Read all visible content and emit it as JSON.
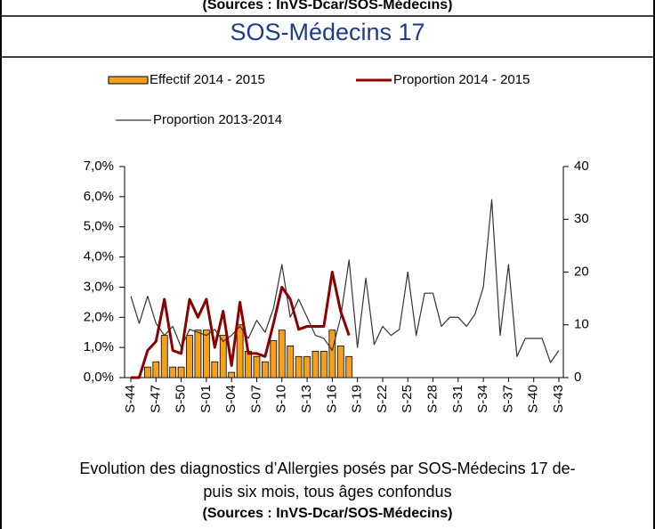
{
  "header": {
    "top_source": "(Sources : InVS-Dcar/SOS-Médecins)",
    "title": "SOS-Médecins 17"
  },
  "chart_data": {
    "type": "combo",
    "categories": [
      "S-44",
      null,
      null,
      "S-47",
      null,
      null,
      "S-50",
      null,
      null,
      "S-01",
      null,
      null,
      "S-04",
      null,
      null,
      "S-07",
      null,
      null,
      "S-10",
      null,
      null,
      "S-13",
      null,
      null,
      "S-16",
      null,
      null,
      "S-19",
      null,
      null,
      "S-22",
      null,
      null,
      "S-25",
      null,
      null,
      "S-28",
      null,
      null,
      "S-31",
      null,
      null,
      "S-34",
      null,
      null,
      "S-37",
      null,
      null,
      "S-40",
      null,
      null,
      "S-43"
    ],
    "series": [
      {
        "name": "Effectif 2014 - 2015",
        "kind": "bar",
        "axis": "y2",
        "color": "#f5a01a",
        "values": [
          0,
          0,
          2,
          3,
          8,
          2,
          2,
          8,
          9,
          9,
          3,
          8,
          1,
          10,
          5,
          4,
          3,
          7,
          9,
          6,
          4,
          4,
          5,
          5,
          9,
          6,
          4,
          null,
          null,
          null,
          null,
          null,
          null,
          null,
          null,
          null,
          null,
          null,
          null,
          null,
          null,
          null,
          null,
          null,
          null,
          null,
          null,
          null,
          null,
          null,
          null,
          null
        ]
      },
      {
        "name": "Proportion 2014 - 2015",
        "kind": "line",
        "color": "#8b0000",
        "values": [
          0,
          0,
          0.9,
          1.2,
          2.6,
          0.9,
          0.8,
          2.6,
          2.0,
          2.6,
          1.0,
          2.2,
          0.4,
          2.5,
          0.8,
          0.8,
          0.7,
          1.8,
          3.0,
          2.6,
          1.6,
          1.7,
          1.7,
          1.7,
          3.5,
          2.2,
          1.4,
          null,
          null,
          null,
          null,
          null,
          null,
          null,
          null,
          null,
          null,
          null,
          null,
          null,
          null,
          null,
          null,
          null,
          null,
          null,
          null,
          null,
          null,
          null,
          null,
          null
        ]
      },
      {
        "name": "Proportion 2013-2014",
        "kind": "line",
        "color": "#333333",
        "values": [
          2.7,
          1.8,
          2.7,
          1.8,
          1.4,
          1.7,
          1.0,
          1.6,
          1.5,
          1.4,
          1.6,
          1.2,
          1.4,
          1.7,
          1.3,
          1.9,
          1.5,
          2.3,
          3.75,
          2.0,
          2.6,
          2.0,
          1.4,
          1.3,
          0.9,
          2.0,
          3.9,
          1.0,
          3.3,
          1.1,
          1.7,
          1.4,
          1.6,
          3.5,
          1.4,
          2.8,
          2.8,
          1.7,
          2.0,
          2.0,
          1.7,
          2.1,
          3.0,
          5.9,
          1.4,
          3.75,
          0.7,
          1.3,
          1.3,
          1.3,
          0.5,
          0.9
        ]
      }
    ],
    "ylim": [
      0,
      7
    ],
    "yticks": [
      {
        "value": 0,
        "label": "0,0%"
      },
      {
        "value": 1,
        "label": "1,0%"
      },
      {
        "value": 2,
        "label": "2,0%"
      },
      {
        "value": 3,
        "label": "3,0%"
      },
      {
        "value": 4,
        "label": "4,0%"
      },
      {
        "value": 5,
        "label": "5,0%"
      },
      {
        "value": 6,
        "label": "6,0%"
      },
      {
        "value": 7,
        "label": "7,0%"
      }
    ],
    "y2lim": [
      0,
      40
    ],
    "y2ticks": [
      0,
      10,
      20,
      30,
      40
    ]
  },
  "caption": {
    "lines": [
      "Evolution des diagnostics d’Allergies posés par SOS-Médecins 17 de-",
      "puis six mois, tous âges confondus"
    ],
    "source": "(Sources : InVS-Dcar/SOS-Médecins)"
  }
}
